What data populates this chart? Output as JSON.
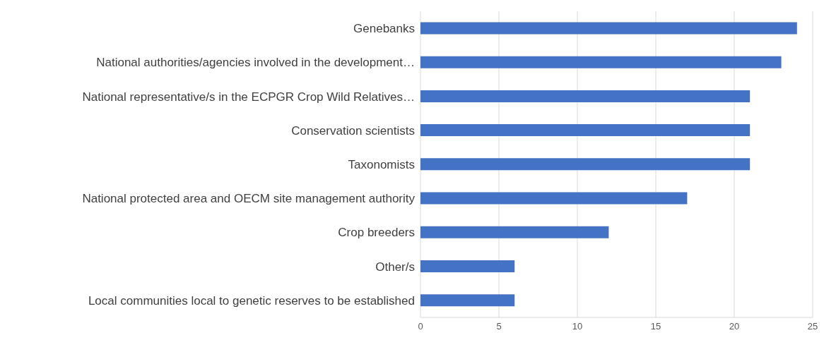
{
  "chart_data": {
    "type": "bar",
    "orientation": "horizontal",
    "categories": [
      "Genebanks",
      "National authorities/agencies involved in the development…",
      "National representative/s in the ECPGR Crop Wild Relatives…",
      "Conservation scientists",
      "Taxonomists",
      "National protected area and OECM site management authority",
      "Crop breeders",
      "Other/s",
      "Local communities local to genetic reserves to be established"
    ],
    "values": [
      24,
      23,
      21,
      21,
      21,
      17,
      12,
      6,
      6
    ],
    "color": "#4472c4",
    "xlim": [
      0,
      25
    ],
    "xticks": [
      0,
      5,
      10,
      15,
      20,
      25
    ],
    "grid": "x"
  }
}
